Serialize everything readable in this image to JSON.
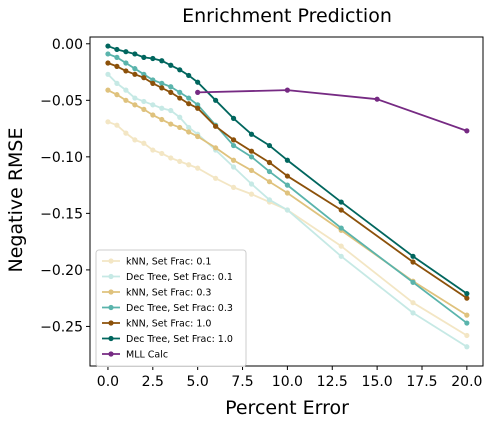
{
  "chart_data": {
    "type": "line",
    "title": "Enrichment Prediction",
    "xlabel": "Percent Error",
    "ylabel": "Negative RMSE",
    "xlim": [
      -1,
      20.9
    ],
    "ylim": [
      -0.285,
      0.006
    ],
    "xticks": [
      0.0,
      2.5,
      5.0,
      7.5,
      10.0,
      12.5,
      15.0,
      17.5,
      20.0
    ],
    "xtick_labels": [
      "0.0",
      "2.5",
      "5.0",
      "7.5",
      "10.0",
      "12.5",
      "15.0",
      "17.5",
      "20.0"
    ],
    "yticks": [
      0.0,
      -0.05,
      -0.1,
      -0.15,
      -0.2,
      -0.25
    ],
    "ytick_labels": [
      "0.00",
      "−0.05",
      "−0.10",
      "−0.15",
      "−0.20",
      "−0.25"
    ],
    "grid": false,
    "legend_position": "bottom-left",
    "series": [
      {
        "name": "kNN, Set Frac: 0.1",
        "color": "#f3e6c4",
        "x": [
          0,
          0.5,
          1,
          1.5,
          2,
          2.5,
          3,
          3.5,
          4,
          4.5,
          5,
          6,
          7,
          8,
          9,
          10,
          13,
          17,
          20
        ],
        "y": [
          -0.069,
          -0.072,
          -0.079,
          -0.085,
          -0.088,
          -0.094,
          -0.097,
          -0.101,
          -0.104,
          -0.107,
          -0.11,
          -0.119,
          -0.127,
          -0.133,
          -0.14,
          -0.147,
          -0.179,
          -0.229,
          -0.258
        ]
      },
      {
        "name": "Dec Tree, Set Frac: 0.1",
        "color": "#c6e9e5",
        "x": [
          0,
          0.5,
          1,
          1.5,
          2,
          2.5,
          3,
          3.5,
          4,
          4.5,
          5,
          6,
          7,
          8,
          9,
          10,
          13,
          17,
          20
        ],
        "y": [
          -0.027,
          -0.035,
          -0.041,
          -0.048,
          -0.051,
          -0.054,
          -0.057,
          -0.059,
          -0.065,
          -0.074,
          -0.08,
          -0.094,
          -0.109,
          -0.124,
          -0.138,
          -0.147,
          -0.188,
          -0.238,
          -0.268
        ]
      },
      {
        "name": "kNN, Set Frac: 0.3",
        "color": "#dfc27d",
        "x": [
          0,
          0.5,
          1,
          1.5,
          2,
          2.5,
          3,
          3.5,
          4,
          4.5,
          5,
          6,
          7,
          8,
          9,
          10,
          13,
          17,
          20
        ],
        "y": [
          -0.041,
          -0.045,
          -0.05,
          -0.054,
          -0.058,
          -0.063,
          -0.067,
          -0.071,
          -0.074,
          -0.078,
          -0.082,
          -0.092,
          -0.103,
          -0.112,
          -0.122,
          -0.132,
          -0.165,
          -0.21,
          -0.24
        ]
      },
      {
        "name": "Dec Tree, Set Frac: 0.3",
        "color": "#5ab4ac",
        "x": [
          0,
          0.5,
          1,
          1.5,
          2,
          2.5,
          3,
          3.5,
          4,
          4.5,
          5,
          6,
          7,
          8,
          9,
          10,
          13,
          17,
          20
        ],
        "y": [
          -0.009,
          -0.012,
          -0.017,
          -0.022,
          -0.027,
          -0.032,
          -0.035,
          -0.038,
          -0.043,
          -0.048,
          -0.054,
          -0.072,
          -0.09,
          -0.1,
          -0.113,
          -0.125,
          -0.163,
          -0.211,
          -0.247
        ]
      },
      {
        "name": "kNN, Set Frac: 1.0",
        "color": "#8c510a",
        "x": [
          0,
          0.5,
          1,
          1.5,
          2,
          2.5,
          3,
          3.5,
          4,
          4.5,
          5,
          6,
          7,
          8,
          9,
          10,
          13,
          17,
          20
        ],
        "y": [
          -0.017,
          -0.02,
          -0.024,
          -0.027,
          -0.03,
          -0.035,
          -0.039,
          -0.043,
          -0.048,
          -0.053,
          -0.057,
          -0.073,
          -0.085,
          -0.095,
          -0.105,
          -0.117,
          -0.147,
          -0.193,
          -0.225
        ]
      },
      {
        "name": "Dec Tree, Set Frac: 1.0",
        "color": "#01665e",
        "x": [
          0,
          0.5,
          1,
          1.5,
          2,
          2.5,
          3,
          3.5,
          4,
          4.5,
          5,
          6,
          7,
          8,
          9,
          10,
          13,
          17,
          20
        ],
        "y": [
          -0.002,
          -0.005,
          -0.007,
          -0.009,
          -0.012,
          -0.013,
          -0.015,
          -0.019,
          -0.023,
          -0.028,
          -0.034,
          -0.05,
          -0.066,
          -0.08,
          -0.09,
          -0.103,
          -0.14,
          -0.188,
          -0.221
        ]
      },
      {
        "name": "MLL Calc",
        "color": "#762a83",
        "x": [
          5,
          10,
          15,
          20
        ],
        "y": [
          -0.043,
          -0.041,
          -0.049,
          -0.077
        ]
      }
    ]
  }
}
